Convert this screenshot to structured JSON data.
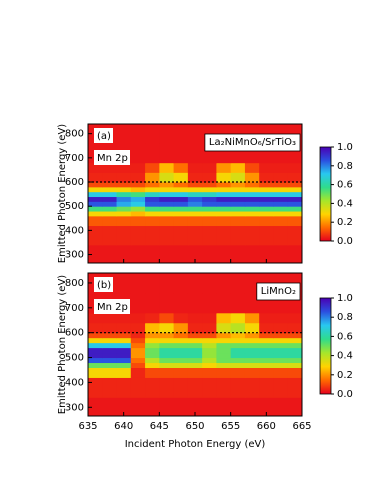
{
  "chart_data": [
    {
      "type": "heatmap",
      "annotation": "(a)",
      "edge_label": "Mn 2p",
      "sample": "La₂NiMnO₆/SrTiO₃",
      "y_label": "Emitted Photon Energy (eV)",
      "x_bins": [
        635,
        637,
        639,
        641,
        643,
        645,
        647,
        649,
        651,
        653,
        655,
        657,
        659,
        661,
        663,
        665
      ],
      "y_bins": [
        260,
        340,
        420,
        460,
        480,
        500,
        520,
        540,
        560,
        580,
        600,
        640,
        680,
        760,
        840
      ],
      "values": [
        [
          0.03,
          0.03,
          0.03,
          0.03,
          0.03,
          0.03,
          0.03,
          0.03,
          0.03,
          0.03,
          0.03,
          0.03,
          0.03,
          0.03,
          0.03
        ],
        [
          0.05,
          0.05,
          0.05,
          0.05,
          0.05,
          0.05,
          0.05,
          0.05,
          0.05,
          0.05,
          0.05,
          0.05,
          0.05,
          0.05,
          0.05
        ],
        [
          0.12,
          0.12,
          0.12,
          0.12,
          0.12,
          0.12,
          0.12,
          0.12,
          0.12,
          0.12,
          0.12,
          0.12,
          0.12,
          0.12,
          0.12
        ],
        [
          0.3,
          0.3,
          0.3,
          0.25,
          0.3,
          0.3,
          0.3,
          0.3,
          0.3,
          0.3,
          0.3,
          0.3,
          0.3,
          0.3,
          0.3
        ],
        [
          0.55,
          0.55,
          0.5,
          0.45,
          0.55,
          0.55,
          0.55,
          0.55,
          0.55,
          0.55,
          0.55,
          0.55,
          0.55,
          0.55,
          0.55
        ],
        [
          0.85,
          0.85,
          0.75,
          0.7,
          0.85,
          0.85,
          0.85,
          0.8,
          0.85,
          0.85,
          0.85,
          0.85,
          0.85,
          0.85,
          0.85
        ],
        [
          0.95,
          0.95,
          0.8,
          0.75,
          0.9,
          0.95,
          0.95,
          0.85,
          0.9,
          0.95,
          0.95,
          0.95,
          0.95,
          0.95,
          0.95
        ],
        [
          0.7,
          0.7,
          0.6,
          0.55,
          0.65,
          0.7,
          0.7,
          0.65,
          0.65,
          0.7,
          0.7,
          0.7,
          0.7,
          0.7,
          0.7
        ],
        [
          0.3,
          0.3,
          0.3,
          0.25,
          0.3,
          0.3,
          0.3,
          0.3,
          0.3,
          0.3,
          0.3,
          0.3,
          0.3,
          0.3,
          0.3
        ],
        [
          0.1,
          0.1,
          0.1,
          0.1,
          0.15,
          0.2,
          0.15,
          0.1,
          0.1,
          0.15,
          0.2,
          0.15,
          0.1,
          0.1,
          0.1
        ],
        [
          0.05,
          0.05,
          0.05,
          0.05,
          0.2,
          0.35,
          0.3,
          0.05,
          0.05,
          0.3,
          0.35,
          0.2,
          0.05,
          0.05,
          0.05
        ],
        [
          0.04,
          0.04,
          0.04,
          0.04,
          0.1,
          0.25,
          0.15,
          0.04,
          0.04,
          0.2,
          0.25,
          0.1,
          0.04,
          0.04,
          0.04
        ],
        [
          0.03,
          0.03,
          0.03,
          0.03,
          0.03,
          0.03,
          0.03,
          0.03,
          0.03,
          0.03,
          0.03,
          0.03,
          0.03,
          0.03,
          0.03
        ],
        [
          0.03,
          0.03,
          0.03,
          0.03,
          0.03,
          0.03,
          0.03,
          0.03,
          0.03,
          0.03,
          0.03,
          0.03,
          0.03,
          0.03,
          0.03
        ]
      ],
      "reference_line": 600,
      "xlim": [
        635,
        665
      ],
      "xticks": [
        635,
        640,
        645,
        650,
        655,
        660,
        665
      ],
      "ylim": [
        265,
        840
      ],
      "yticks": [
        300,
        400,
        500,
        600,
        700,
        800
      ],
      "clim": [
        0,
        1
      ],
      "cticks": [
        {
          "value": 0,
          "label": "0.0"
        },
        {
          "value": 0.2,
          "label": "0.2"
        },
        {
          "value": 0.4,
          "label": "0.4"
        },
        {
          "value": 0.6,
          "label": "0.6"
        },
        {
          "value": 0.8,
          "label": "0.8"
        },
        {
          "value": 1,
          "label": "1.0"
        }
      ],
      "colormap": [
        "#e6001e",
        "#ff6a00",
        "#ffd400",
        "#a6e62b",
        "#2fdc8c",
        "#28c8f0",
        "#2b4fe0",
        "#4a00b4"
      ]
    },
    {
      "type": "heatmap",
      "annotation": "(b)",
      "edge_label": "Mn 2p",
      "sample": "LiMnO₂",
      "y_label": "Emitted Photon Energy (eV)",
      "x_label": "Incident Photon Energy (eV)",
      "x_bins": [
        635,
        637,
        639,
        641,
        643,
        645,
        647,
        649,
        651,
        653,
        655,
        657,
        659,
        661,
        663,
        665
      ],
      "y_bins": [
        260,
        340,
        420,
        460,
        480,
        500,
        520,
        540,
        560,
        580,
        600,
        640,
        680,
        760,
        840
      ],
      "values": [
        [
          0.03,
          0.03,
          0.03,
          0.03,
          0.03,
          0.03,
          0.03,
          0.03,
          0.03,
          0.03,
          0.03,
          0.03,
          0.03,
          0.03,
          0.03
        ],
        [
          0.05,
          0.05,
          0.05,
          0.05,
          0.05,
          0.05,
          0.05,
          0.05,
          0.05,
          0.05,
          0.05,
          0.05,
          0.05,
          0.05,
          0.05
        ],
        [
          0.3,
          0.3,
          0.3,
          0.05,
          0.1,
          0.1,
          0.1,
          0.1,
          0.1,
          0.1,
          0.1,
          0.1,
          0.1,
          0.1,
          0.1
        ],
        [
          0.5,
          0.5,
          0.5,
          0.1,
          0.3,
          0.35,
          0.35,
          0.35,
          0.3,
          0.35,
          0.35,
          0.35,
          0.35,
          0.35,
          0.35
        ],
        [
          0.85,
          0.85,
          0.85,
          0.15,
          0.4,
          0.5,
          0.5,
          0.5,
          0.4,
          0.5,
          0.5,
          0.5,
          0.5,
          0.5,
          0.5
        ],
        [
          0.95,
          0.95,
          0.95,
          0.2,
          0.5,
          0.6,
          0.6,
          0.6,
          0.45,
          0.5,
          0.6,
          0.6,
          0.6,
          0.6,
          0.6
        ],
        [
          0.95,
          0.95,
          0.95,
          0.2,
          0.5,
          0.6,
          0.6,
          0.6,
          0.45,
          0.5,
          0.6,
          0.6,
          0.6,
          0.6,
          0.6
        ],
        [
          0.7,
          0.7,
          0.7,
          0.15,
          0.45,
          0.5,
          0.5,
          0.5,
          0.4,
          0.5,
          0.5,
          0.5,
          0.5,
          0.5,
          0.5
        ],
        [
          0.3,
          0.3,
          0.3,
          0.1,
          0.3,
          0.3,
          0.3,
          0.3,
          0.3,
          0.3,
          0.3,
          0.3,
          0.3,
          0.3,
          0.3
        ],
        [
          0.1,
          0.1,
          0.1,
          0.05,
          0.2,
          0.2,
          0.15,
          0.1,
          0.1,
          0.2,
          0.25,
          0.2,
          0.1,
          0.1,
          0.1
        ],
        [
          0.05,
          0.05,
          0.05,
          0.05,
          0.25,
          0.3,
          0.2,
          0.05,
          0.05,
          0.35,
          0.4,
          0.3,
          0.05,
          0.05,
          0.05
        ],
        [
          0.04,
          0.04,
          0.04,
          0.04,
          0.05,
          0.1,
          0.05,
          0.04,
          0.04,
          0.25,
          0.3,
          0.2,
          0.04,
          0.04,
          0.04
        ],
        [
          0.03,
          0.03,
          0.03,
          0.03,
          0.03,
          0.03,
          0.03,
          0.03,
          0.03,
          0.03,
          0.03,
          0.03,
          0.03,
          0.03,
          0.03
        ],
        [
          0.03,
          0.03,
          0.03,
          0.03,
          0.03,
          0.03,
          0.03,
          0.03,
          0.03,
          0.03,
          0.03,
          0.03,
          0.03,
          0.03,
          0.03
        ]
      ],
      "reference_line": 600,
      "xlim": [
        635,
        665
      ],
      "xticks": [
        635,
        640,
        645,
        650,
        655,
        660,
        665
      ],
      "ylim": [
        265,
        840
      ],
      "yticks": [
        300,
        400,
        500,
        600,
        700,
        800
      ],
      "clim": [
        0,
        1
      ],
      "cticks": [
        {
          "value": 0,
          "label": "0.0"
        },
        {
          "value": 0.2,
          "label": "0.2"
        },
        {
          "value": 0.4,
          "label": "0.4"
        },
        {
          "value": 0.6,
          "label": "0.6"
        },
        {
          "value": 0.8,
          "label": "0.8"
        },
        {
          "value": 1,
          "label": "1.0"
        }
      ],
      "colormap": [
        "#e6001e",
        "#ff6a00",
        "#ffd400",
        "#a6e62b",
        "#2fdc8c",
        "#28c8f0",
        "#2b4fe0",
        "#4a00b4"
      ]
    }
  ]
}
